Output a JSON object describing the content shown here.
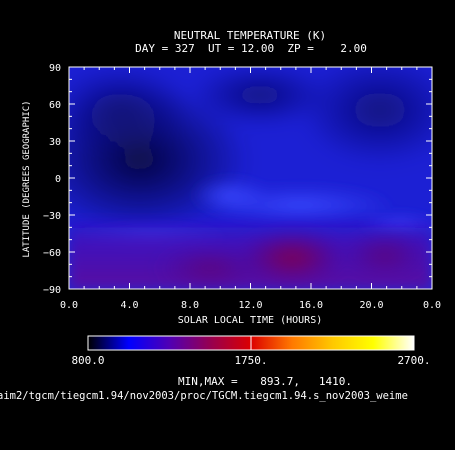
{
  "chart_data": {
    "type": "heatmap",
    "title": "NEUTRAL TEMPERATURE (K)",
    "subtitle": "DAY = 327  UT = 12.00  ZP =    2.00",
    "xlabel": "SOLAR LOCAL TIME (HOURS)",
    "ylabel": "LATITUDE (DEGREES GEOGRAPHIC)",
    "x_ticks": [
      "0.0",
      "4.0",
      "8.0",
      "12.0",
      "16.0",
      "20.0",
      "0.0"
    ],
    "x_tick_values": [
      0,
      4,
      8,
      12,
      16,
      20,
      24
    ],
    "y_ticks": [
      "90",
      "60",
      "30",
      "0",
      "−30",
      "−60",
      "−90"
    ],
    "y_tick_values": [
      90,
      60,
      30,
      0,
      -30,
      -60,
      -90
    ],
    "xlim": [
      0,
      24
    ],
    "ylim": [
      -90,
      90
    ],
    "colorbar": {
      "min_label": "800.0",
      "mid_label": "1750.",
      "max_label": "2700.",
      "min": 800,
      "max": 2700,
      "stops": [
        "#000000",
        "#0000ff",
        "#5000b4",
        "#960050",
        "#dc0000",
        "#ff7800",
        "#ffc800",
        "#ffff00",
        "#ffffff"
      ]
    },
    "minmax_label": "MIN,MAX =",
    "min_value": "893.7,",
    "max_value": "1410.",
    "field_min": 893.7,
    "field_max": 1410,
    "z_estimates": [
      {
        "x": 4,
        "y": 15,
        "z": 895
      },
      {
        "x": 12,
        "y": -45,
        "z": 1100
      },
      {
        "x": 16,
        "y": -65,
        "z": 1400
      },
      {
        "x": 21,
        "y": -65,
        "z": 1250
      },
      {
        "x": 12,
        "y": 60,
        "z": 990
      }
    ]
  },
  "file_path": "aim2/tgcm/tiegcm1.94/nov2003/proc/TGCM.tiegcm1.94.s_nov2003_weime"
}
